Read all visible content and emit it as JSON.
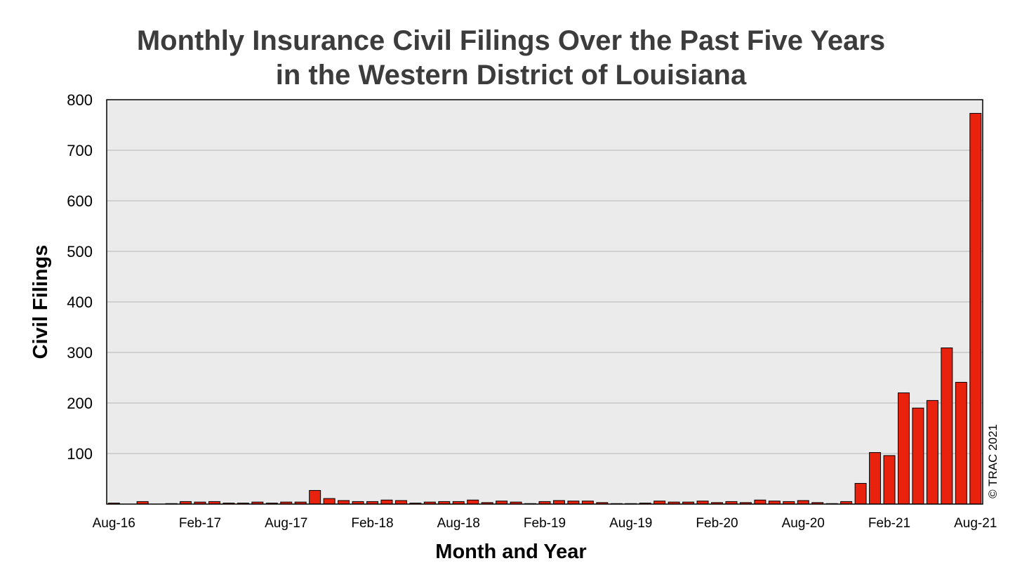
{
  "chart_data": {
    "type": "bar",
    "title_lines": [
      "Monthly Insurance Civil Filings Over the Past Five Years",
      "in the Western District of Louisiana"
    ],
    "xlabel": "Month and Year",
    "ylabel": "Civil Filings",
    "ylim": [
      0,
      800
    ],
    "yticks": [
      100,
      200,
      300,
      400,
      500,
      600,
      700,
      800
    ],
    "xtick_labels": [
      "Aug-16",
      "Feb-17",
      "Aug-17",
      "Feb-18",
      "Aug-18",
      "Feb-19",
      "Aug-19",
      "Feb-20",
      "Aug-20",
      "Feb-21",
      "Aug-21"
    ],
    "xtick_every": 6,
    "grid": "horizontal",
    "credit": "© TRAC 2021",
    "categories": [
      "Aug-16",
      "Sep-16",
      "Oct-16",
      "Nov-16",
      "Dec-16",
      "Jan-17",
      "Feb-17",
      "Mar-17",
      "Apr-17",
      "May-17",
      "Jun-17",
      "Jul-17",
      "Aug-17",
      "Sep-17",
      "Oct-17",
      "Nov-17",
      "Dec-17",
      "Jan-18",
      "Feb-18",
      "Mar-18",
      "Apr-18",
      "May-18",
      "Jun-18",
      "Jul-18",
      "Aug-18",
      "Sep-18",
      "Oct-18",
      "Nov-18",
      "Dec-18",
      "Jan-19",
      "Feb-19",
      "Mar-19",
      "Apr-19",
      "May-19",
      "Jun-19",
      "Jul-19",
      "Aug-19",
      "Sep-19",
      "Oct-19",
      "Nov-19",
      "Dec-19",
      "Jan-20",
      "Feb-20",
      "Mar-20",
      "Apr-20",
      "May-20",
      "Jun-20",
      "Jul-20",
      "Aug-20",
      "Sep-20",
      "Oct-20",
      "Nov-20",
      "Dec-20",
      "Jan-21",
      "Feb-21",
      "Mar-21",
      "Apr-21",
      "May-21",
      "Jun-21",
      "Jul-21",
      "Aug-21"
    ],
    "values": [
      2,
      0,
      5,
      0,
      1,
      5,
      4,
      5,
      2,
      2,
      4,
      2,
      4,
      4,
      27,
      11,
      7,
      5,
      5,
      8,
      7,
      2,
      4,
      5,
      5,
      8,
      3,
      6,
      4,
      1,
      5,
      7,
      6,
      6,
      3,
      1,
      1,
      2,
      6,
      4,
      4,
      6,
      3,
      5,
      3,
      8,
      6,
      5,
      7,
      3,
      1,
      5,
      41,
      102,
      96,
      220,
      190,
      205,
      309,
      241,
      773
    ],
    "bar_color": "#e8220d",
    "plot_background": "#ebebeb"
  }
}
